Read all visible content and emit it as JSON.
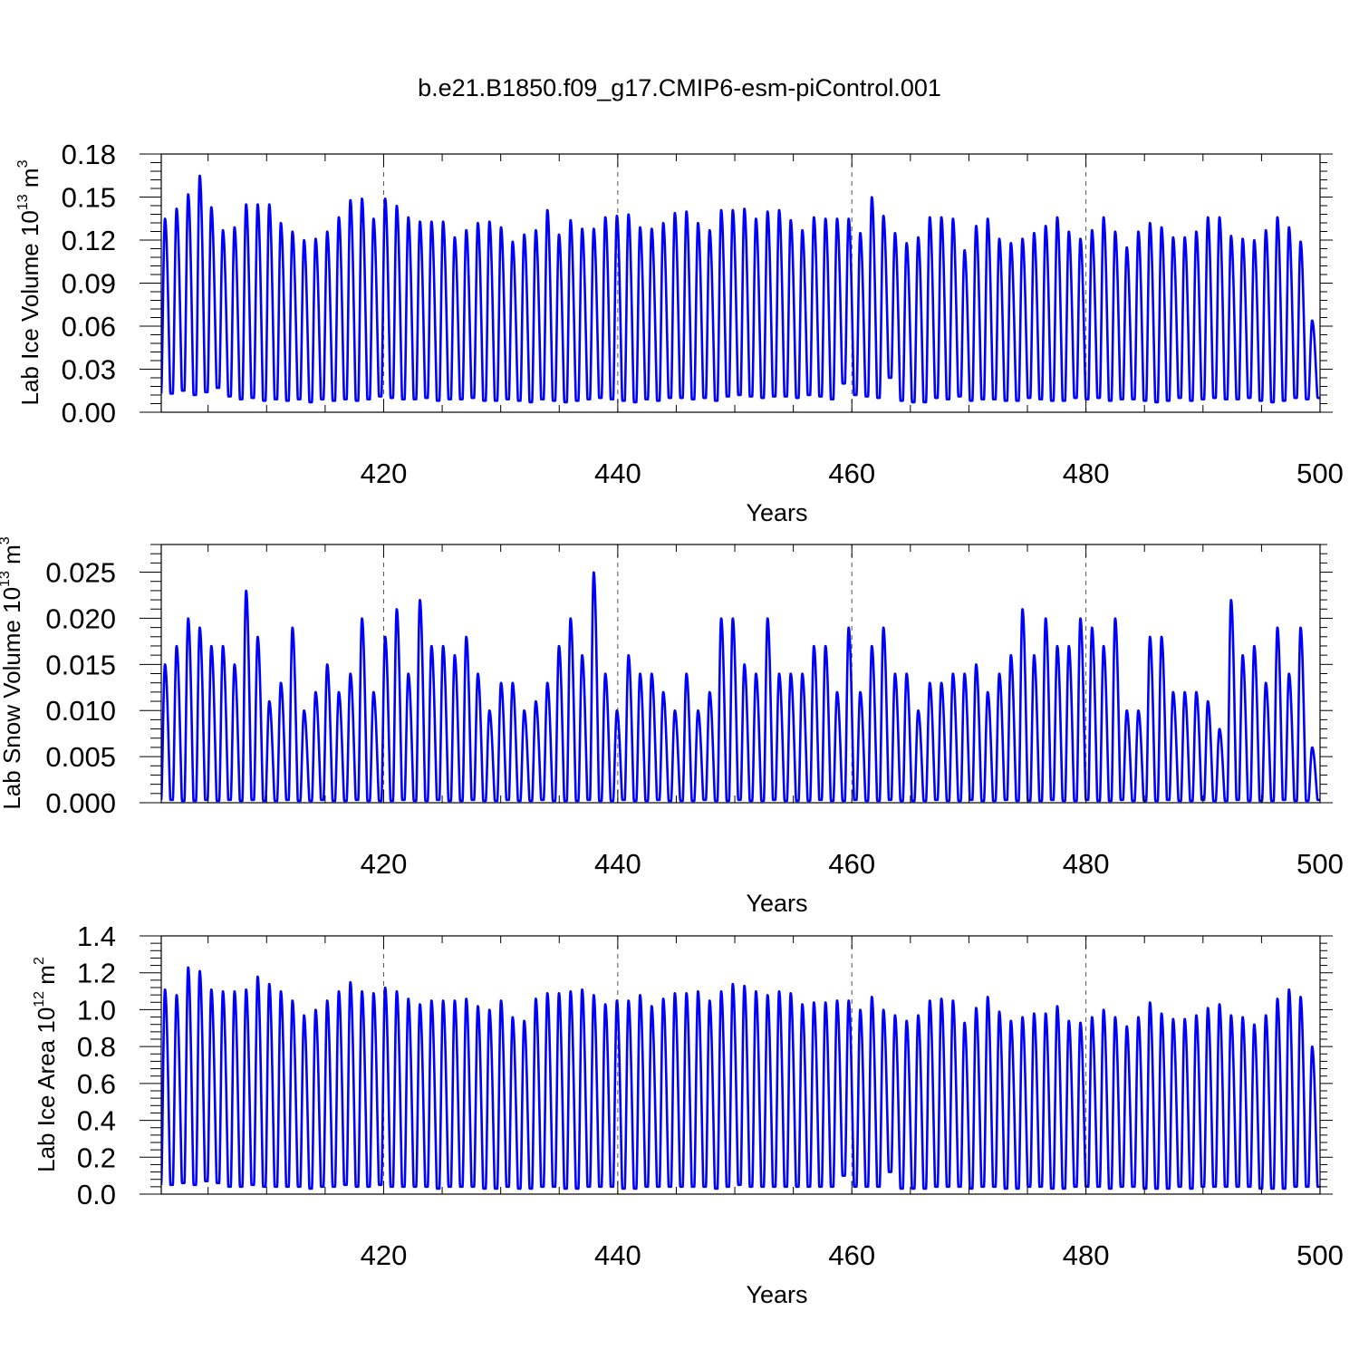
{
  "figure": {
    "title": "b.e21.B1850.f09_g17.CMIP6-esm-piControl.001"
  },
  "colors": {
    "line": "#0000ff",
    "axis": "#000000",
    "gridline": "#555555"
  },
  "chart_data": [
    {
      "type": "line",
      "x_start": 401,
      "x_end": 500,
      "xlim": [
        401,
        500
      ],
      "xticks": [
        420,
        440,
        460,
        480,
        500
      ],
      "xlabel": "Years",
      "ylabel": "Lab Ice Volume 10",
      "ylabel_exp": "13",
      "ylabel_unit": " m",
      "ylabel_unit_exp": "3",
      "ylim": [
        0,
        0.18
      ],
      "yticks": [
        "0.00",
        "0.03",
        "0.06",
        "0.09",
        "0.12",
        "0.15",
        "0.18"
      ],
      "grid": "vertical dashed at labeled x ticks",
      "series": [
        {
          "minima": [
            0.013,
            0.015,
            0.012,
            0.014,
            0.017,
            0.011,
            0.009,
            0.01,
            0.008,
            0.009,
            0.008,
            0.009,
            0.007,
            0.009,
            0.008,
            0.009,
            0.008,
            0.009,
            0.011,
            0.01,
            0.009,
            0.009,
            0.01,
            0.008,
            0.009,
            0.009,
            0.01,
            0.008,
            0.008,
            0.009,
            0.008,
            0.007,
            0.009,
            0.008,
            0.007,
            0.008,
            0.009,
            0.01,
            0.009,
            0.008,
            0.007,
            0.009,
            0.008,
            0.01,
            0.01,
            0.009,
            0.01,
            0.008,
            0.011,
            0.012,
            0.011,
            0.01,
            0.011,
            0.011,
            0.01,
            0.012,
            0.011,
            0.009,
            0.02,
            0.012,
            0.011,
            0.01,
            0.024,
            0.008,
            0.007,
            0.007,
            0.01,
            0.009,
            0.011,
            0.008,
            0.009,
            0.009,
            0.008,
            0.008,
            0.01,
            0.009,
            0.008,
            0.008,
            0.01,
            0.009,
            0.01,
            0.008,
            0.009,
            0.009,
            0.008,
            0.007,
            0.008,
            0.01,
            0.008,
            0.009,
            0.01,
            0.009,
            0.009,
            0.01,
            0.008,
            0.007,
            0.008,
            0.01,
            0.009,
            0.01
          ],
          "maxima": [
            0.135,
            0.142,
            0.152,
            0.165,
            0.143,
            0.127,
            0.129,
            0.145,
            0.145,
            0.145,
            0.132,
            0.126,
            0.12,
            0.121,
            0.126,
            0.136,
            0.148,
            0.149,
            0.135,
            0.149,
            0.144,
            0.136,
            0.133,
            0.133,
            0.133,
            0.122,
            0.127,
            0.132,
            0.133,
            0.129,
            0.119,
            0.124,
            0.127,
            0.141,
            0.124,
            0.134,
            0.128,
            0.128,
            0.136,
            0.137,
            0.138,
            0.129,
            0.128,
            0.132,
            0.139,
            0.14,
            0.132,
            0.127,
            0.141,
            0.141,
            0.142,
            0.135,
            0.14,
            0.141,
            0.134,
            0.127,
            0.136,
            0.135,
            0.135,
            0.135,
            0.125,
            0.15,
            0.137,
            0.125,
            0.118,
            0.122,
            0.136,
            0.136,
            0.135,
            0.113,
            0.13,
            0.135,
            0.121,
            0.118,
            0.121,
            0.125,
            0.13,
            0.136,
            0.126,
            0.121,
            0.127,
            0.136,
            0.126,
            0.115,
            0.126,
            0.132,
            0.129,
            0.122,
            0.122,
            0.126,
            0.136,
            0.136,
            0.123,
            0.121,
            0.12,
            0.127,
            0.136,
            0.129,
            0.119,
            0.064
          ]
        }
      ]
    },
    {
      "type": "line",
      "x_start": 401,
      "x_end": 500,
      "xlim": [
        401,
        500
      ],
      "xticks": [
        420,
        440,
        460,
        480,
        500
      ],
      "xlabel": "Years",
      "ylabel": "Lab Snow Volume 10",
      "ylabel_exp": "13",
      "ylabel_unit": " m",
      "ylabel_unit_exp": "3",
      "ylim": [
        0,
        0.028
      ],
      "yticks": [
        "0.000",
        "0.005",
        "0.010",
        "0.015",
        "0.020",
        "0.025"
      ],
      "grid": "vertical dashed at labeled x ticks",
      "series": [
        {
          "minima": [
            0.0003,
            0.0002,
            0.0002,
            0.0003,
            0.0002,
            0.0003,
            0.0002,
            0.0003,
            0.0002,
            0.0002,
            0.0003,
            0.0002,
            0.0002,
            0.0003,
            0.0002,
            0.0002,
            0.0003,
            0.0002,
            0.0002,
            0.0002,
            0.0003,
            0.0002,
            0.0002,
            0.0003,
            0.0002,
            0.0002,
            0.0003,
            0.0002,
            0.0002,
            0.0003,
            0.0002,
            0.0002,
            0.0003,
            0.0002,
            0.0002,
            0.0002,
            0.0003,
            0.0002,
            0.0002,
            0.0003,
            0.0002,
            0.0002,
            0.0003,
            0.0002,
            0.0002,
            0.0002,
            0.0003,
            0.0002,
            0.0002,
            0.0003,
            0.0002,
            0.0002,
            0.0003,
            0.0002,
            0.0002,
            0.0002,
            0.0003,
            0.0002,
            0.0002,
            0.0003,
            0.0002,
            0.0002,
            0.0003,
            0.0002,
            0.0002,
            0.0002,
            0.0003,
            0.0002,
            0.0002,
            0.0003,
            0.0002,
            0.0002,
            0.0003,
            0.0002,
            0.0002,
            0.0002,
            0.0003,
            0.0002,
            0.0002,
            0.0003,
            0.0002,
            0.0002,
            0.0003,
            0.0002,
            0.0002,
            0.0002,
            0.0003,
            0.0002,
            0.0002,
            0.0003,
            0.0002,
            0.0002,
            0.0003,
            0.0002,
            0.0002,
            0.0002,
            0.0003,
            0.0002,
            0.0002,
            0.0003
          ],
          "maxima": [
            0.015,
            0.017,
            0.02,
            0.019,
            0.017,
            0.017,
            0.015,
            0.023,
            0.018,
            0.011,
            0.013,
            0.019,
            0.01,
            0.012,
            0.015,
            0.012,
            0.014,
            0.02,
            0.012,
            0.018,
            0.021,
            0.014,
            0.022,
            0.017,
            0.017,
            0.016,
            0.018,
            0.014,
            0.01,
            0.013,
            0.013,
            0.01,
            0.011,
            0.013,
            0.017,
            0.02,
            0.016,
            0.025,
            0.014,
            0.01,
            0.016,
            0.014,
            0.014,
            0.012,
            0.01,
            0.014,
            0.01,
            0.012,
            0.02,
            0.02,
            0.015,
            0.014,
            0.02,
            0.014,
            0.014,
            0.014,
            0.017,
            0.017,
            0.012,
            0.019,
            0.012,
            0.017,
            0.019,
            0.014,
            0.014,
            0.01,
            0.013,
            0.013,
            0.014,
            0.014,
            0.015,
            0.012,
            0.014,
            0.016,
            0.021,
            0.016,
            0.02,
            0.017,
            0.017,
            0.02,
            0.019,
            0.017,
            0.02,
            0.01,
            0.01,
            0.018,
            0.018,
            0.012,
            0.012,
            0.012,
            0.011,
            0.008,
            0.022,
            0.016,
            0.017,
            0.013,
            0.019,
            0.014,
            0.019,
            0.006
          ]
        }
      ]
    },
    {
      "type": "line",
      "x_start": 401,
      "x_end": 500,
      "xlim": [
        401,
        500
      ],
      "xticks": [
        420,
        440,
        460,
        480,
        500
      ],
      "xlabel": "Years",
      "ylabel": "Lab Ice Area 10",
      "ylabel_exp": "12",
      "ylabel_unit": " m",
      "ylabel_unit_exp": "2",
      "ylim": [
        0,
        1.4
      ],
      "yticks": [
        "0.0",
        "0.2",
        "0.4",
        "0.6",
        "0.8",
        "1.0",
        "1.2",
        "1.4"
      ],
      "grid": "vertical dashed at labeled x ticks",
      "series": [
        {
          "minima": [
            0.05,
            0.06,
            0.05,
            0.07,
            0.06,
            0.04,
            0.04,
            0.05,
            0.04,
            0.04,
            0.04,
            0.04,
            0.03,
            0.04,
            0.04,
            0.05,
            0.04,
            0.04,
            0.05,
            0.04,
            0.04,
            0.04,
            0.04,
            0.03,
            0.04,
            0.04,
            0.04,
            0.03,
            0.03,
            0.04,
            0.03,
            0.03,
            0.04,
            0.04,
            0.03,
            0.03,
            0.04,
            0.04,
            0.04,
            0.03,
            0.03,
            0.04,
            0.04,
            0.04,
            0.04,
            0.04,
            0.04,
            0.03,
            0.04,
            0.05,
            0.04,
            0.04,
            0.04,
            0.04,
            0.04,
            0.04,
            0.04,
            0.04,
            0.1,
            0.04,
            0.04,
            0.04,
            0.12,
            0.03,
            0.03,
            0.03,
            0.04,
            0.04,
            0.04,
            0.03,
            0.04,
            0.04,
            0.03,
            0.03,
            0.04,
            0.04,
            0.03,
            0.03,
            0.04,
            0.04,
            0.04,
            0.03,
            0.04,
            0.04,
            0.03,
            0.03,
            0.03,
            0.04,
            0.03,
            0.04,
            0.04,
            0.04,
            0.04,
            0.04,
            0.03,
            0.03,
            0.03,
            0.04,
            0.04,
            0.04
          ],
          "maxima": [
            1.11,
            1.08,
            1.23,
            1.21,
            1.11,
            1.1,
            1.1,
            1.11,
            1.18,
            1.14,
            1.1,
            1.05,
            0.97,
            1.0,
            1.05,
            1.1,
            1.15,
            1.1,
            1.09,
            1.12,
            1.1,
            1.06,
            1.03,
            1.05,
            1.05,
            1.05,
            1.06,
            1.02,
            1.0,
            1.05,
            0.96,
            0.94,
            1.06,
            1.09,
            1.09,
            1.1,
            1.11,
            1.08,
            1.03,
            1.05,
            1.05,
            1.08,
            1.02,
            1.06,
            1.09,
            1.09,
            1.1,
            1.05,
            1.1,
            1.14,
            1.13,
            1.1,
            1.08,
            1.1,
            1.09,
            1.03,
            1.04,
            1.04,
            1.05,
            1.05,
            1.0,
            1.07,
            1.0,
            0.97,
            0.94,
            0.97,
            1.05,
            1.06,
            1.05,
            0.93,
            1.01,
            1.07,
            0.99,
            0.94,
            0.96,
            0.98,
            0.98,
            1.02,
            0.94,
            0.93,
            0.96,
            1.0,
            0.96,
            0.91,
            0.96,
            1.04,
            0.98,
            0.95,
            0.95,
            0.97,
            1.01,
            1.03,
            0.97,
            0.96,
            0.92,
            0.97,
            1.06,
            1.11,
            1.07,
            0.8
          ]
        }
      ]
    }
  ]
}
